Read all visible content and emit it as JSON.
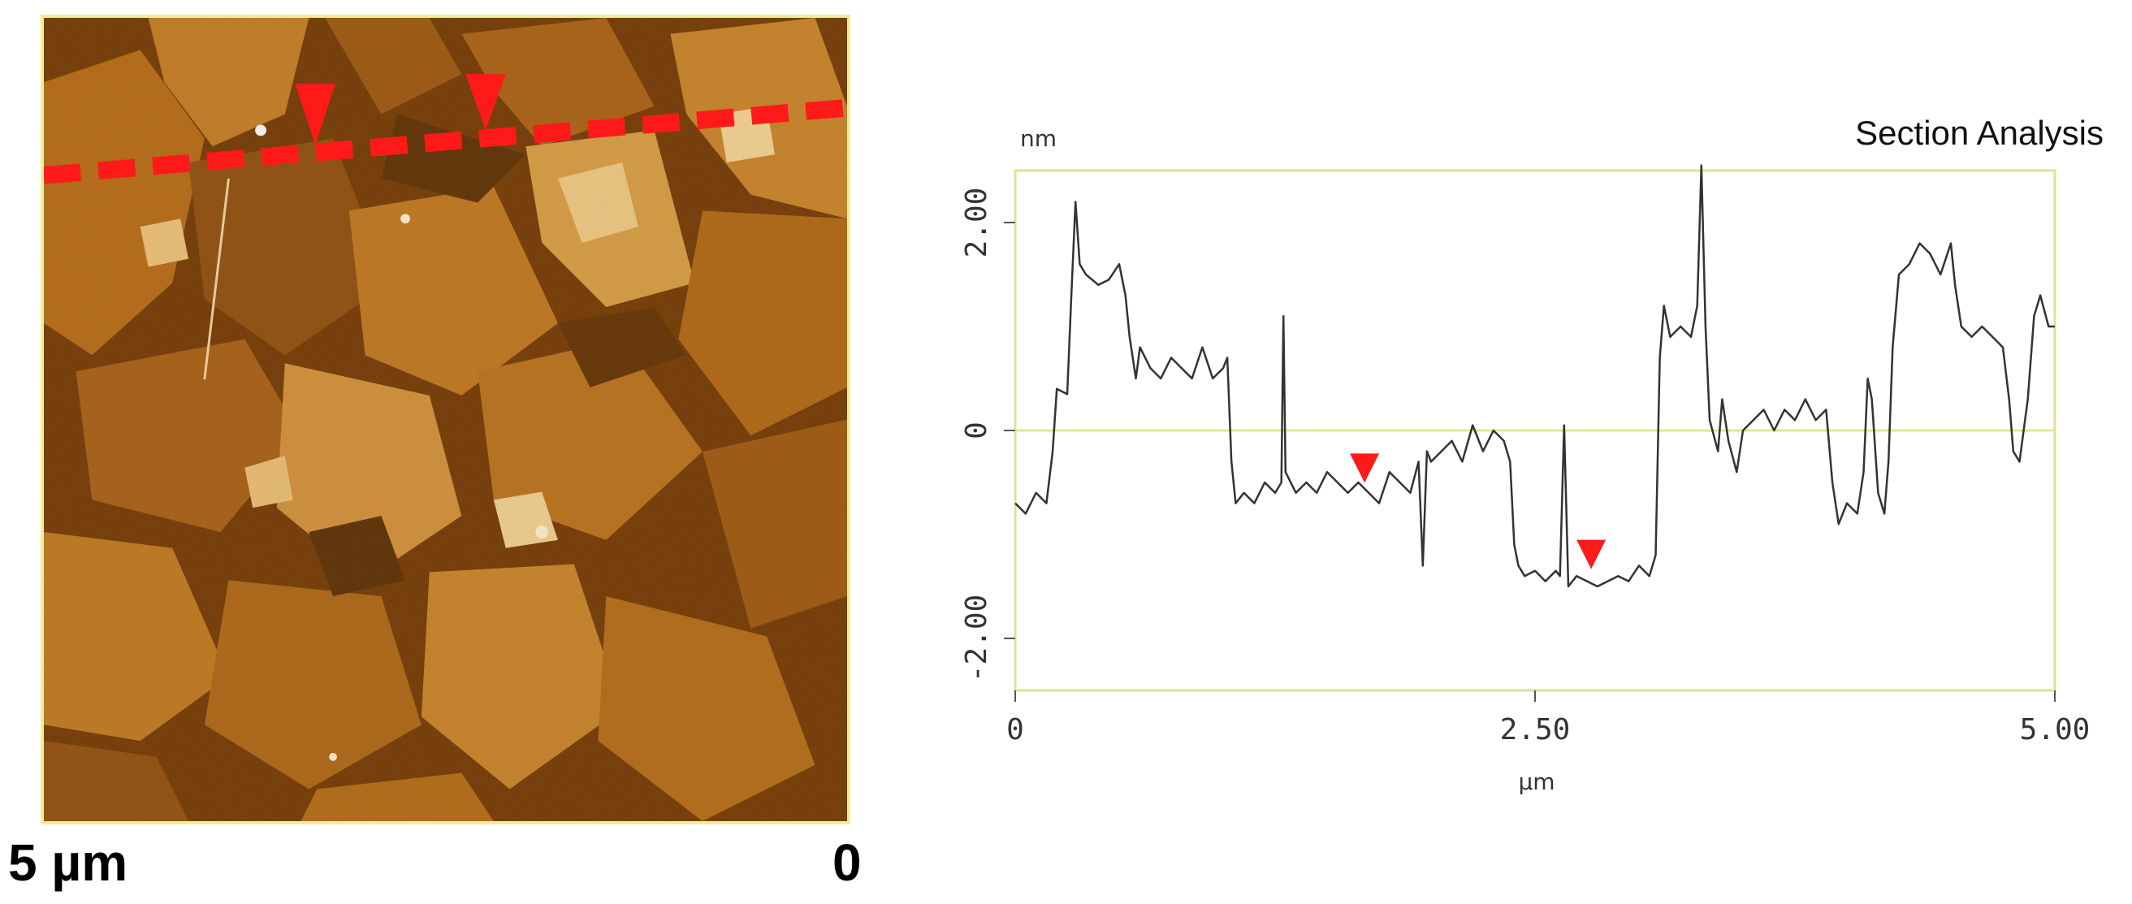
{
  "afm_image": {
    "scale_left_label": "5 µm",
    "scale_right_label": "0",
    "colors": {
      "dark": "#5a2200",
      "mid": "#a85c10",
      "light": "#d99a3a",
      "bright": "#f4d69a",
      "marker": "#ff1a1a",
      "frame": "#f2ec9a"
    }
  },
  "chart_data": {
    "type": "line",
    "title": "Section Analysis",
    "ylabel": "nm",
    "xlabel": "µm",
    "xlim": [
      0,
      5.0
    ],
    "ylim": [
      -2.5,
      2.5
    ],
    "xticks": [
      "0",
      "2.50",
      "5.00"
    ],
    "xtick_values": [
      0,
      2.5,
      5.0
    ],
    "yticks": [
      "2.00",
      "0",
      "-2.00"
    ],
    "ytick_values": [
      2.0,
      0,
      -2.0
    ],
    "zero_line": true,
    "markers": [
      {
        "x": 1.68,
        "y": -0.55
      },
      {
        "x": 2.77,
        "y": -1.38
      }
    ],
    "series": [
      {
        "values": [
          [
            0.0,
            -0.7
          ],
          [
            0.05,
            -0.8
          ],
          [
            0.1,
            -0.6
          ],
          [
            0.15,
            -0.7
          ],
          [
            0.18,
            -0.2
          ],
          [
            0.2,
            0.4
          ],
          [
            0.25,
            0.35
          ],
          [
            0.27,
            1.3
          ],
          [
            0.29,
            2.2
          ],
          [
            0.31,
            1.6
          ],
          [
            0.34,
            1.5
          ],
          [
            0.4,
            1.4
          ],
          [
            0.45,
            1.45
          ],
          [
            0.5,
            1.6
          ],
          [
            0.53,
            1.3
          ],
          [
            0.55,
            0.9
          ],
          [
            0.58,
            0.5
          ],
          [
            0.6,
            0.8
          ],
          [
            0.65,
            0.6
          ],
          [
            0.7,
            0.5
          ],
          [
            0.75,
            0.7
          ],
          [
            0.8,
            0.6
          ],
          [
            0.85,
            0.5
          ],
          [
            0.9,
            0.8
          ],
          [
            0.95,
            0.5
          ],
          [
            1.0,
            0.6
          ],
          [
            1.02,
            0.7
          ],
          [
            1.04,
            -0.3
          ],
          [
            1.06,
            -0.7
          ],
          [
            1.1,
            -0.6
          ],
          [
            1.15,
            -0.7
          ],
          [
            1.2,
            -0.5
          ],
          [
            1.25,
            -0.6
          ],
          [
            1.28,
            -0.5
          ],
          [
            1.29,
            1.1
          ],
          [
            1.3,
            -0.4
          ],
          [
            1.35,
            -0.6
          ],
          [
            1.4,
            -0.5
          ],
          [
            1.45,
            -0.6
          ],
          [
            1.5,
            -0.4
          ],
          [
            1.55,
            -0.5
          ],
          [
            1.6,
            -0.6
          ],
          [
            1.65,
            -0.5
          ],
          [
            1.7,
            -0.6
          ],
          [
            1.75,
            -0.7
          ],
          [
            1.8,
            -0.4
          ],
          [
            1.85,
            -0.5
          ],
          [
            1.9,
            -0.6
          ],
          [
            1.94,
            -0.3
          ],
          [
            1.96,
            -1.3
          ],
          [
            1.98,
            -0.2
          ],
          [
            2.0,
            -0.3
          ],
          [
            2.05,
            -0.2
          ],
          [
            2.1,
            -0.1
          ],
          [
            2.15,
            -0.3
          ],
          [
            2.2,
            0.05
          ],
          [
            2.25,
            -0.2
          ],
          [
            2.3,
            0.0
          ],
          [
            2.35,
            -0.1
          ],
          [
            2.38,
            -0.3
          ],
          [
            2.4,
            -1.1
          ],
          [
            2.42,
            -1.3
          ],
          [
            2.45,
            -1.4
          ],
          [
            2.5,
            -1.35
          ],
          [
            2.55,
            -1.45
          ],
          [
            2.6,
            -1.35
          ],
          [
            2.62,
            -1.4
          ],
          [
            2.64,
            0.05
          ],
          [
            2.66,
            -1.5
          ],
          [
            2.7,
            -1.4
          ],
          [
            2.75,
            -1.45
          ],
          [
            2.8,
            -1.5
          ],
          [
            2.85,
            -1.45
          ],
          [
            2.9,
            -1.4
          ],
          [
            2.95,
            -1.45
          ],
          [
            3.0,
            -1.3
          ],
          [
            3.05,
            -1.4
          ],
          [
            3.08,
            -1.2
          ],
          [
            3.1,
            0.7
          ],
          [
            3.12,
            1.2
          ],
          [
            3.15,
            0.9
          ],
          [
            3.2,
            1.0
          ],
          [
            3.25,
            0.9
          ],
          [
            3.28,
            1.2
          ],
          [
            3.3,
            2.55
          ],
          [
            3.32,
            1.0
          ],
          [
            3.34,
            0.1
          ],
          [
            3.38,
            -0.2
          ],
          [
            3.4,
            0.3
          ],
          [
            3.43,
            -0.1
          ],
          [
            3.47,
            -0.4
          ],
          [
            3.5,
            0.0
          ],
          [
            3.55,
            0.1
          ],
          [
            3.6,
            0.2
          ],
          [
            3.65,
            0.0
          ],
          [
            3.7,
            0.2
          ],
          [
            3.75,
            0.1
          ],
          [
            3.8,
            0.3
          ],
          [
            3.85,
            0.1
          ],
          [
            3.9,
            0.2
          ],
          [
            3.93,
            -0.5
          ],
          [
            3.96,
            -0.9
          ],
          [
            4.0,
            -0.7
          ],
          [
            4.05,
            -0.8
          ],
          [
            4.08,
            -0.4
          ],
          [
            4.1,
            0.5
          ],
          [
            4.12,
            0.3
          ],
          [
            4.15,
            -0.6
          ],
          [
            4.18,
            -0.8
          ],
          [
            4.2,
            -0.3
          ],
          [
            4.22,
            0.8
          ],
          [
            4.25,
            1.5
          ],
          [
            4.3,
            1.6
          ],
          [
            4.35,
            1.8
          ],
          [
            4.4,
            1.7
          ],
          [
            4.45,
            1.5
          ],
          [
            4.5,
            1.8
          ],
          [
            4.52,
            1.4
          ],
          [
            4.55,
            1.0
          ],
          [
            4.6,
            0.9
          ],
          [
            4.65,
            1.0
          ],
          [
            4.7,
            0.9
          ],
          [
            4.75,
            0.8
          ],
          [
            4.78,
            0.3
          ],
          [
            4.8,
            -0.2
          ],
          [
            4.83,
            -0.3
          ],
          [
            4.87,
            0.3
          ],
          [
            4.9,
            1.1
          ],
          [
            4.93,
            1.3
          ],
          [
            4.97,
            1.0
          ],
          [
            5.0,
            1.0
          ]
        ]
      }
    ]
  }
}
